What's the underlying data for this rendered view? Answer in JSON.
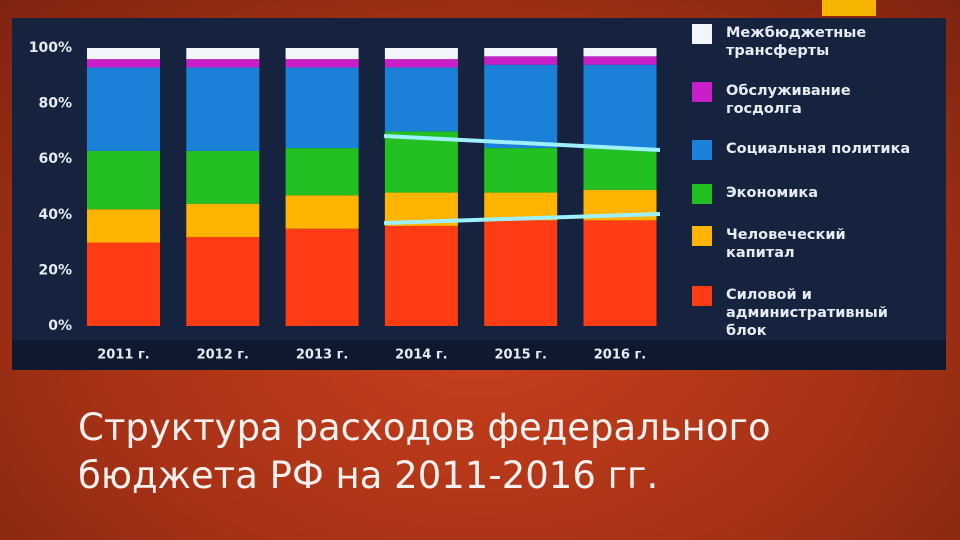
{
  "chart_data": {
    "type": "stacked_bar",
    "title": "Структура расходов федерального бюджета РФ на 2011-2016 гг.",
    "categories": [
      "2011 г.",
      "2012 г.",
      "2013 г.",
      "2014 г.",
      "2015 г.",
      "2016 г."
    ],
    "series": [
      {
        "name": "Силовой и административный блок",
        "color": "#ff3c14",
        "values": [
          30,
          32,
          35,
          36,
          38,
          38
        ]
      },
      {
        "name": "Человеческий капитал",
        "color": "#ffb400",
        "values": [
          12,
          12,
          12,
          12,
          10,
          11
        ]
      },
      {
        "name": "Экономика",
        "color": "#22c021",
        "values": [
          21,
          19,
          17,
          22,
          16,
          15
        ]
      },
      {
        "name": "Социальная политика",
        "color": "#1a80d8",
        "values": [
          30,
          30,
          29,
          23,
          30,
          30
        ]
      },
      {
        "name": "Обслуживание госдолга",
        "color": "#c81fc8",
        "values": [
          3,
          3,
          3,
          3,
          3,
          3
        ]
      },
      {
        "name": "Межбюджетные трансферты",
        "color": "#f2f6fa",
        "values": [
          4,
          4,
          4,
          4,
          3,
          3
        ]
      }
    ],
    "ylim": [
      0,
      100
    ],
    "yticks": [
      {
        "value": 0,
        "label": "0%"
      },
      {
        "value": 20,
        "label": "20%"
      },
      {
        "value": 40,
        "label": "40%"
      },
      {
        "value": 60,
        "label": "60%"
      },
      {
        "value": 80,
        "label": "80%"
      },
      {
        "value": 100,
        "label": "100%"
      }
    ]
  }
}
